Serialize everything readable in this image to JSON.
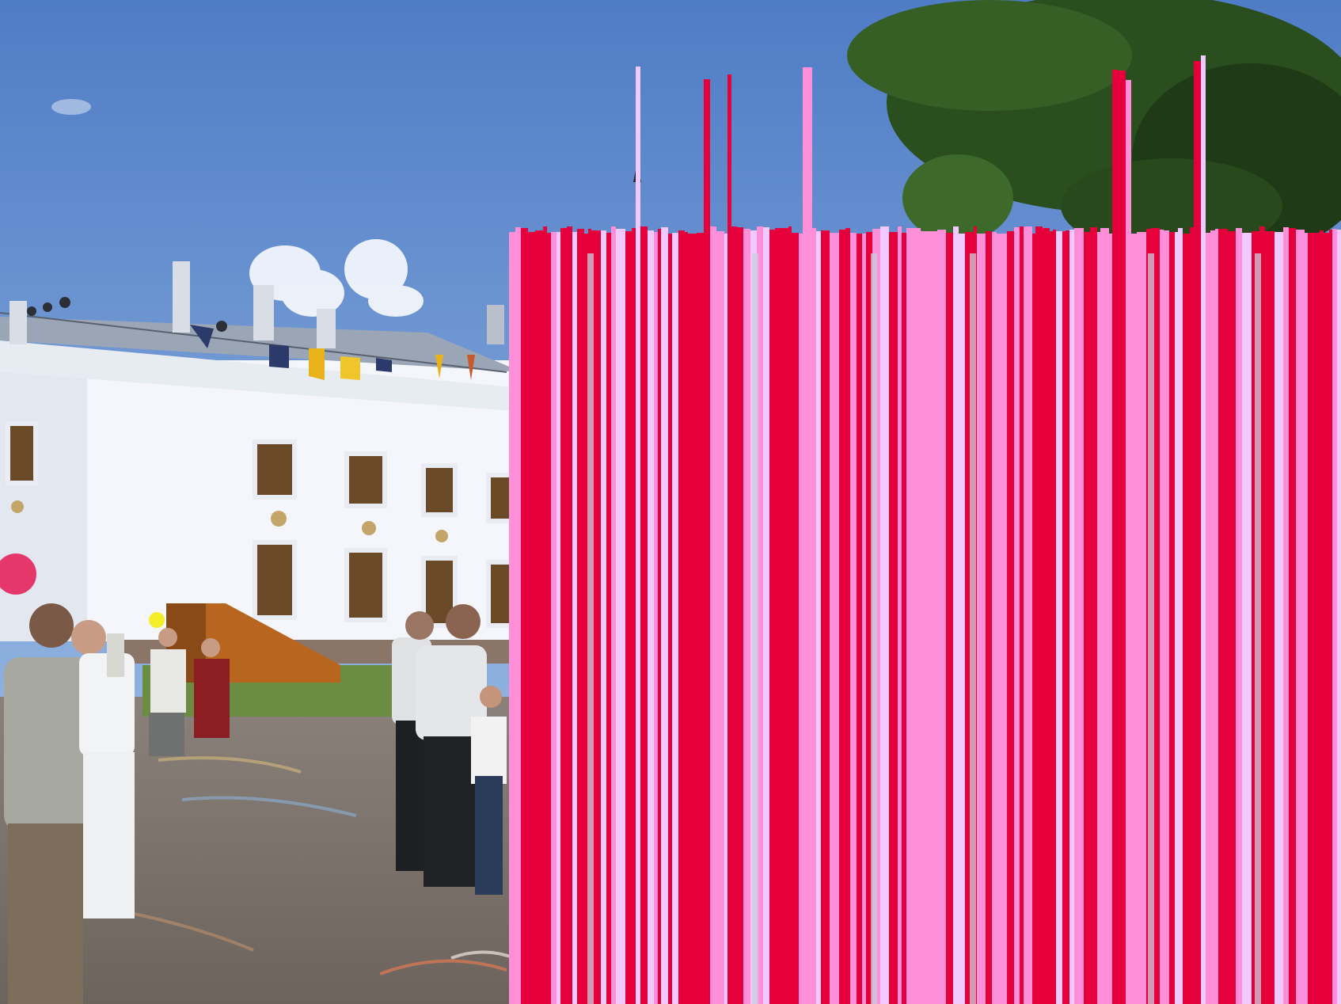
{
  "scene": {
    "description_visible_text": [],
    "colors": {
      "sky_top": "#4f7cc6",
      "sky_bottom": "#8fb2df",
      "building_wall": "#f4f6fb",
      "building_shadow": "#d9dfeb",
      "roof": "#9aa6b6",
      "window_frame": "#6b4a2a",
      "ground": "#7c746f",
      "grass": "#6a8d42",
      "tree_dark": "#1f3a17",
      "tree_mid": "#2f5a22",
      "ramp": "#b7651f",
      "glitch_red": "#e5003c",
      "glitch_pink": "#ff8fd8",
      "glitch_light": "#f2c9ff",
      "balloon_pink": "#e6376b",
      "balloon_yellow": "#f2ef2a"
    },
    "icons": {
      "balloon": "balloon-icon",
      "flag": "flag-icon",
      "loudspeaker": "loudspeaker-icon"
    }
  }
}
